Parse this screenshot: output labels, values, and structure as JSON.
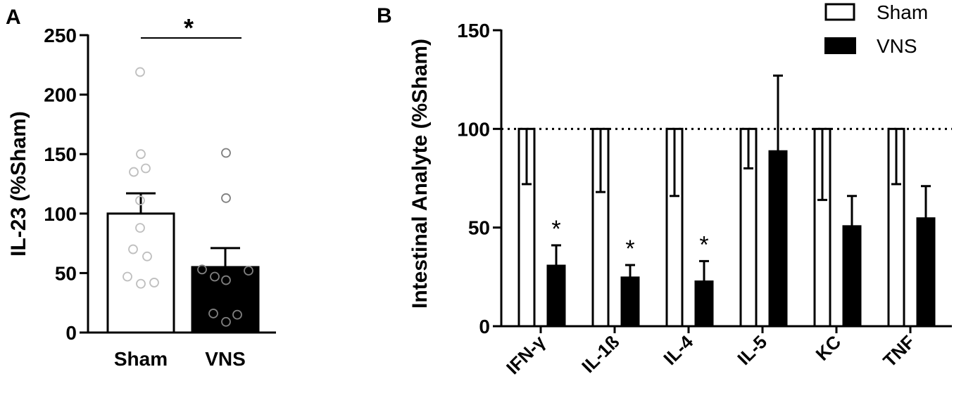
{
  "chart_data": [
    {
      "panel_label": "A",
      "type": "bar",
      "categories": [
        "Sham",
        "VNS"
      ],
      "values": [
        100,
        55
      ],
      "error_upper": [
        117,
        71
      ],
      "ylabel": "IL-23 (%Sham)",
      "ylim": [
        0,
        250
      ],
      "yticks": [
        0,
        50,
        100,
        150,
        200,
        250
      ],
      "significance": "*",
      "points": {
        "Sham": [
          219,
          150,
          138,
          135,
          111,
          88,
          70,
          64,
          47,
          41,
          42
        ],
        "VNS": [
          151,
          113,
          53,
          52,
          47,
          44,
          16,
          15,
          9
        ]
      },
      "colors": {
        "Sham": "#ffffff",
        "VNS": "#000000"
      }
    },
    {
      "panel_label": "B",
      "type": "bar",
      "categories": [
        "IFN-γ",
        "IL-1ß",
        "IL-4",
        "IL-5",
        "KC",
        "TNF"
      ],
      "series": [
        {
          "name": "Sham",
          "values": [
            100,
            100,
            100,
            100,
            100,
            100
          ],
          "error_lower": [
            72,
            68,
            66,
            80,
            64,
            72
          ]
        },
        {
          "name": "VNS",
          "values": [
            31,
            25,
            23,
            89,
            51,
            55
          ],
          "error_upper": [
            41,
            31,
            33,
            127,
            66,
            71
          ]
        }
      ],
      "significance": [
        "*",
        "*",
        "*",
        "",
        "",
        ""
      ],
      "ylabel": "Intestinal Analyte (%Sham)",
      "ylim": [
        0,
        150
      ],
      "yticks": [
        0,
        50,
        100,
        150
      ],
      "reference_line": 100,
      "legend_position": "top-right"
    }
  ]
}
